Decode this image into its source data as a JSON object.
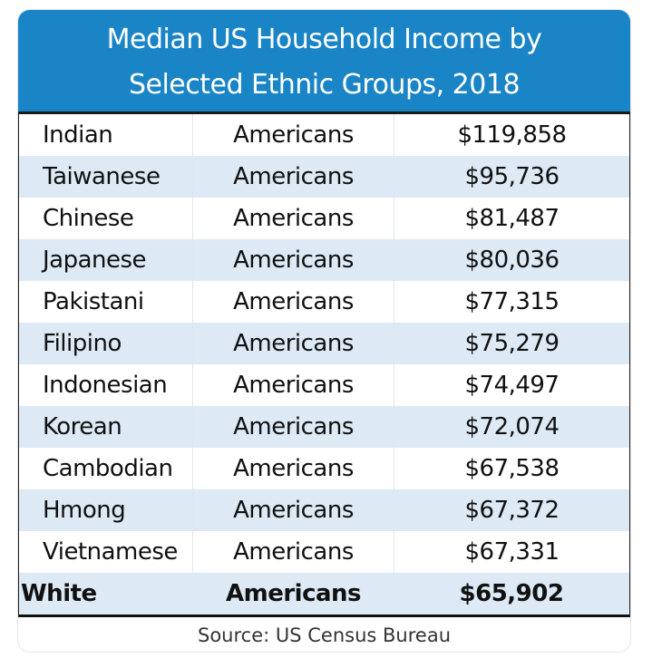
{
  "chart_data": {
    "type": "table",
    "title": "Median US Household Income by Selected Ethnic Groups, 2018",
    "title_lines": [
      "Median US Household Income by",
      "Selected Ethnic Groups, 2018"
    ],
    "rows": [
      [
        "Indian",
        "Americans",
        "$119,858"
      ],
      [
        "Taiwanese",
        "Americans",
        "$95,736"
      ],
      [
        "Chinese",
        "Americans",
        "$81,487"
      ],
      [
        "Japanese",
        "Americans",
        "$80,036"
      ],
      [
        "Pakistani",
        "Americans",
        "$77,315"
      ],
      [
        "Filipino",
        "Americans",
        "$75,279"
      ],
      [
        "Indonesian",
        "Americans",
        "$74,497"
      ],
      [
        "Korean",
        "Americans",
        "$72,074"
      ],
      [
        "Cambodian",
        "Americans",
        "$67,538"
      ],
      [
        "Hmong",
        "Americans",
        "$67,372"
      ],
      [
        "Vietnamese",
        "Americans",
        "$67,331"
      ],
      [
        "White",
        "Americans",
        "$65,902"
      ]
    ],
    "values": [
      119858,
      95736,
      81487,
      80036,
      77315,
      75279,
      74497,
      72074,
      67538,
      67372,
      67331,
      65902
    ],
    "highlighted_row": "White",
    "source": "Source: US Census Bureau"
  },
  "colors": {
    "header": "#1984c6",
    "stripe": "#dde9f5"
  }
}
